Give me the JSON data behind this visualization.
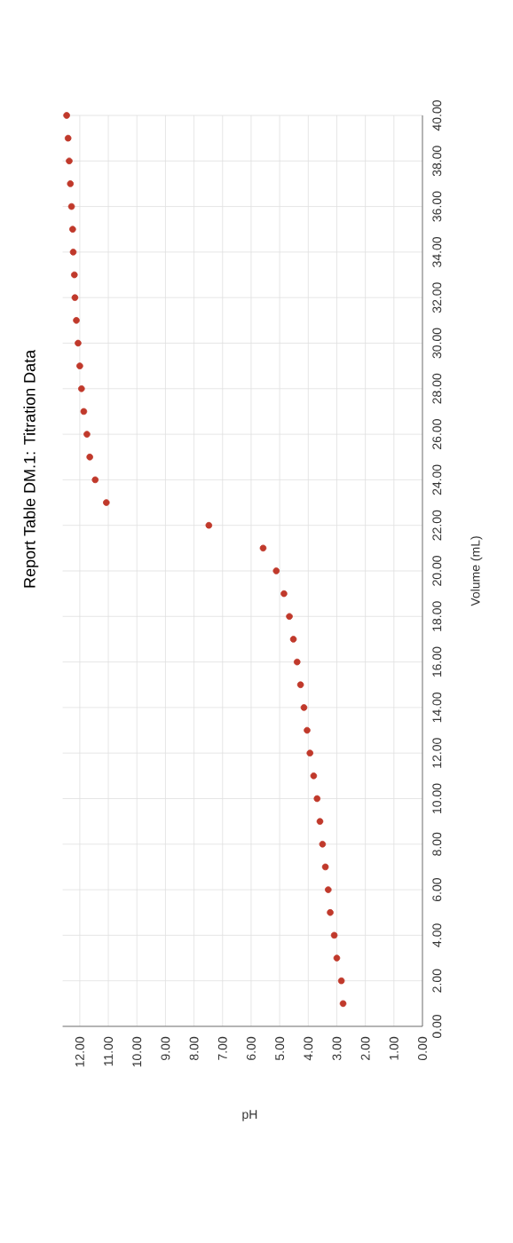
{
  "chart_data": {
    "type": "scatter",
    "title": "Report Table DM.1: Titration Data",
    "xlabel": "pH",
    "ylabel": "Volume (mL)",
    "series": [
      {
        "color": "#c0392b",
        "x": [
          2.78,
          2.84,
          3.0,
          3.09,
          3.23,
          3.3,
          3.4,
          3.5,
          3.59,
          3.69,
          3.81,
          3.94,
          4.04,
          4.15,
          4.27,
          4.39,
          4.52,
          4.66,
          4.85,
          5.12,
          5.58,
          7.48,
          11.07,
          11.46,
          11.65,
          11.75,
          11.86,
          11.94,
          12.0,
          12.06,
          12.12,
          12.17,
          12.19,
          12.23,
          12.25,
          12.29,
          12.33,
          12.37,
          12.41,
          12.46
        ],
        "values": [
          1,
          2,
          3,
          4,
          5,
          6,
          7,
          8,
          9,
          10,
          11,
          12,
          13,
          14,
          15,
          16,
          17,
          18,
          19,
          20,
          21,
          22,
          23,
          24,
          25,
          26,
          27,
          28,
          29,
          30,
          31,
          32,
          33,
          34,
          35,
          36,
          37,
          38,
          39,
          40
        ]
      }
    ],
    "xlim": [
      12.6,
      0
    ],
    "ylim": [
      0,
      40
    ],
    "yticks": [
      {
        "value": 0,
        "label": "0.00"
      },
      {
        "value": 2,
        "label": "2.00"
      },
      {
        "value": 4,
        "label": "4.00"
      },
      {
        "value": 6,
        "label": "6.00"
      },
      {
        "value": 8,
        "label": "8.00"
      },
      {
        "value": 10,
        "label": "10.00"
      },
      {
        "value": 12,
        "label": "12.00"
      },
      {
        "value": 14,
        "label": "14.00"
      },
      {
        "value": 16,
        "label": "16.00"
      },
      {
        "value": 18,
        "label": "18.00"
      },
      {
        "value": 20,
        "label": "20.00"
      },
      {
        "value": 22,
        "label": "22.00"
      },
      {
        "value": 24,
        "label": "24.00"
      },
      {
        "value": 26,
        "label": "26.00"
      },
      {
        "value": 28,
        "label": "28.00"
      },
      {
        "value": 30,
        "label": "30.00"
      },
      {
        "value": 32,
        "label": "32.00"
      },
      {
        "value": 34,
        "label": "34.00"
      },
      {
        "value": 36,
        "label": "36.00"
      },
      {
        "value": 38,
        "label": "38.00"
      },
      {
        "value": 40,
        "label": "40.00"
      }
    ],
    "xticks": [
      {
        "value": 12,
        "label": "12.00"
      },
      {
        "value": 11,
        "label": "11.00"
      },
      {
        "value": 10,
        "label": "10.00"
      },
      {
        "value": 9,
        "label": "9.00"
      },
      {
        "value": 8,
        "label": "8.00"
      },
      {
        "value": 7,
        "label": "7.00"
      },
      {
        "value": 6,
        "label": "6.00"
      },
      {
        "value": 5,
        "label": "5.00"
      },
      {
        "value": 4,
        "label": "4.00"
      },
      {
        "value": 3,
        "label": "3.00"
      },
      {
        "value": 2,
        "label": "2.00"
      },
      {
        "value": 1,
        "label": "1.00"
      },
      {
        "value": 0,
        "label": "0.00"
      }
    ],
    "grid": true
  }
}
